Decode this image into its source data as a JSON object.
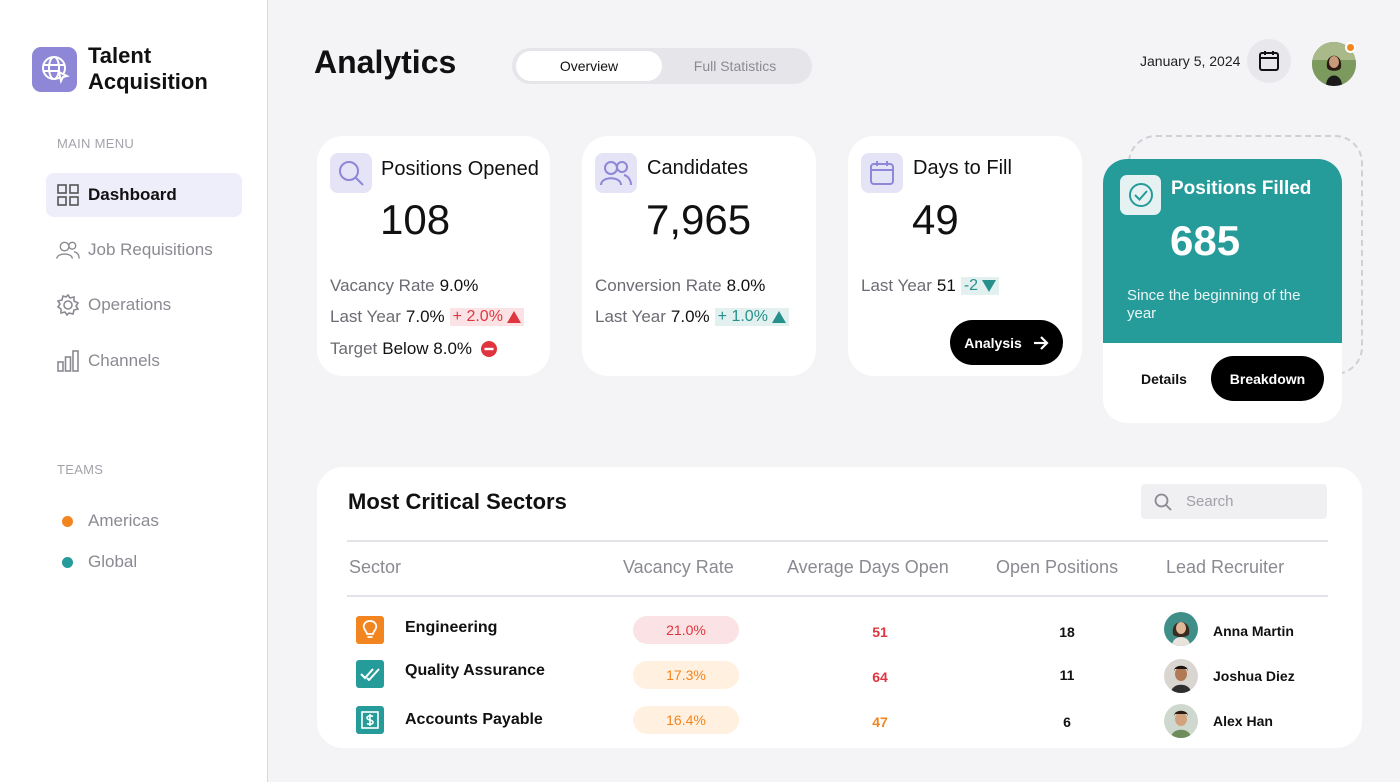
{
  "brand": {
    "name": "Talent Acquisition"
  },
  "sidebar": {
    "main_menu_label": "MAIN MENU",
    "items": [
      {
        "label": "Dashboard",
        "icon": "grid-icon",
        "active": true
      },
      {
        "label": "Job Requisitions",
        "icon": "users-icon",
        "active": false
      },
      {
        "label": "Operations",
        "icon": "gear-icon",
        "active": false
      },
      {
        "label": "Channels",
        "icon": "bar-chart-icon",
        "active": false
      }
    ],
    "teams_label": "TEAMS",
    "teams": [
      {
        "label": "Americas",
        "color": "#f2851f"
      },
      {
        "label": "Global",
        "color": "#259b9a"
      }
    ]
  },
  "header": {
    "title": "Analytics",
    "tabs": [
      {
        "label": "Overview",
        "active": true
      },
      {
        "label": "Full Statistics",
        "active": false
      }
    ],
    "date": "January 5, 2024"
  },
  "cards": {
    "positions_opened": {
      "title": "Positions Opened",
      "value": "108",
      "vacancy_label": "Vacancy Rate",
      "vacancy_value": "9.0%",
      "last_year_label": "Last Year",
      "last_year_value": "7.0%",
      "change": "+ 2.0%",
      "target_label": "Target",
      "target_value": "Below 8.0%"
    },
    "candidates": {
      "title": "Candidates",
      "value": "7,965",
      "conversion_label": "Conversion Rate",
      "conversion_value": "8.0%",
      "last_year_label": "Last Year",
      "last_year_value": "7.0%",
      "change": "+ 1.0%"
    },
    "days_to_fill": {
      "title": "Days to Fill",
      "value": "49",
      "last_year_label": "Last Year",
      "last_year_value": "51",
      "change": "-2",
      "button": "Analysis"
    },
    "positions_filled": {
      "title": "Positions Filled",
      "value": "685",
      "subtitle": "Since the beginning of the year",
      "details_button": "Details",
      "breakdown_button": "Breakdown"
    }
  },
  "colors": {
    "accent": "#8e86d6",
    "teal": "#259b9a",
    "red": "#e0353f",
    "orange": "#f2851f"
  },
  "table": {
    "title": "Most Critical Sectors",
    "search_placeholder": "Search",
    "columns": [
      "Sector",
      "Vacancy Rate",
      "Average Days Open",
      "Open Positions",
      "Lead Recruiter"
    ],
    "rows": [
      {
        "sector": "Engineering",
        "icon": "lightbulb-icon",
        "vacancy_rate": "21.0%",
        "avg_days_open": "51",
        "open_positions": "18",
        "lead_recruiter": "Anna Martin"
      },
      {
        "sector": "Quality Assurance",
        "icon": "double-check-icon",
        "vacancy_rate": "17.3%",
        "avg_days_open": "64",
        "open_positions": "11",
        "lead_recruiter": "Joshua Diez"
      },
      {
        "sector": "Accounts Payable",
        "icon": "dollar-icon",
        "vacancy_rate": "16.4%",
        "avg_days_open": "47",
        "open_positions": "6",
        "lead_recruiter": "Alex Han"
      }
    ]
  }
}
